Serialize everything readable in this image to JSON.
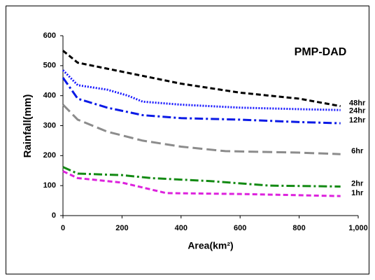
{
  "chart_data": {
    "type": "line",
    "title": "PMP-DAD",
    "xlabel": "Area(km²)",
    "ylabel": "Rainfall(mm)",
    "xlim": [
      0,
      1000
    ],
    "xticks": [
      0,
      200,
      400,
      600,
      800,
      {
        "value": 1000,
        "label": "1,000"
      }
    ],
    "ylim": [
      0,
      600
    ],
    "yticks": [
      0,
      100,
      200,
      300,
      400,
      500,
      600
    ],
    "grid": false,
    "series": [
      {
        "name": "48hr",
        "color": "#000000",
        "style": "dashed",
        "x": [
          0,
          50,
          150,
          200,
          300,
          400,
          600,
          800,
          940
        ],
        "values": [
          550,
          510,
          490,
          480,
          460,
          440,
          410,
          390,
          365
        ]
      },
      {
        "name": "24hr",
        "color": "#1a1aff",
        "style": "dotted",
        "x": [
          0,
          50,
          150,
          220,
          270,
          400,
          600,
          800,
          940
        ],
        "values": [
          485,
          435,
          420,
          400,
          380,
          370,
          360,
          355,
          352
        ]
      },
      {
        "name": "12hr",
        "color": "#0a1ae6",
        "style": "dashdot",
        "x": [
          0,
          50,
          150,
          270,
          400,
          600,
          800,
          940
        ],
        "values": [
          460,
          390,
          360,
          335,
          325,
          320,
          312,
          308
        ]
      },
      {
        "name": "6hr",
        "color": "#8c8c8c",
        "style": "longdash",
        "x": [
          0,
          50,
          150,
          270,
          400,
          550,
          800,
          940
        ],
        "values": [
          370,
          320,
          280,
          250,
          230,
          215,
          210,
          205
        ]
      },
      {
        "name": "2hr",
        "color": "#138a13",
        "style": "dashdot",
        "x": [
          0,
          50,
          200,
          300,
          500,
          700,
          940
        ],
        "values": [
          162,
          140,
          135,
          125,
          115,
          100,
          97
        ]
      },
      {
        "name": "1hr",
        "color": "#dd22dd",
        "style": "dashed",
        "x": [
          0,
          50,
          200,
          350,
          600,
          800,
          940
        ],
        "values": [
          148,
          125,
          110,
          75,
          72,
          68,
          65
        ]
      }
    ]
  }
}
